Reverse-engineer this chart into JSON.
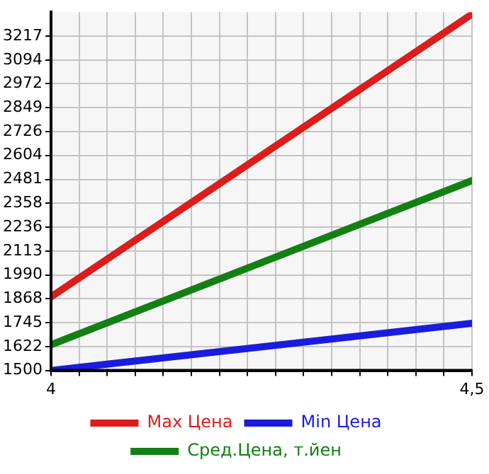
{
  "chart_data": {
    "type": "line",
    "x": [
      4,
      4.5
    ],
    "series": [
      {
        "name": "Max Цена",
        "color": "#dd1c1c",
        "values": [
          1878,
          3330
        ]
      },
      {
        "name": "Min Цена",
        "color": "#1c1cdd",
        "values": [
          1500,
          1742
        ]
      },
      {
        "name": "Сред.Цена, т.йен",
        "color": "#138013",
        "values": [
          1632,
          2475
        ]
      }
    ],
    "xlim": [
      4,
      4.5
    ],
    "xticks": [
      4,
      {
        "value": 4.0333,
        "label": null
      },
      {
        "value": 4.0667,
        "label": null
      },
      {
        "value": 4.1,
        "label": null
      },
      {
        "value": 4.1333,
        "label": null
      },
      {
        "value": 4.1667,
        "label": null
      },
      {
        "value": 4.2,
        "label": null
      },
      {
        "value": 4.2333,
        "label": null
      },
      {
        "value": 4.2667,
        "label": null
      },
      {
        "value": 4.3,
        "label": null
      },
      {
        "value": 4.3333,
        "label": null
      },
      {
        "value": 4.3667,
        "label": null
      },
      {
        "value": 4.4,
        "label": null
      },
      {
        "value": 4.4333,
        "label": null
      },
      {
        "value": 4.4667,
        "label": null
      },
      {
        "value": 4.5,
        "label": "4,5"
      }
    ],
    "ylim": [
      1500,
      3340
    ],
    "yticks": [
      1500,
      1622,
      1745,
      1868,
      1990,
      2113,
      2236,
      2358,
      2481,
      2604,
      2726,
      2849,
      2972,
      3094,
      3217
    ],
    "grid": true,
    "legend": "bottom",
    "marker": "none",
    "line_style": "solid"
  }
}
